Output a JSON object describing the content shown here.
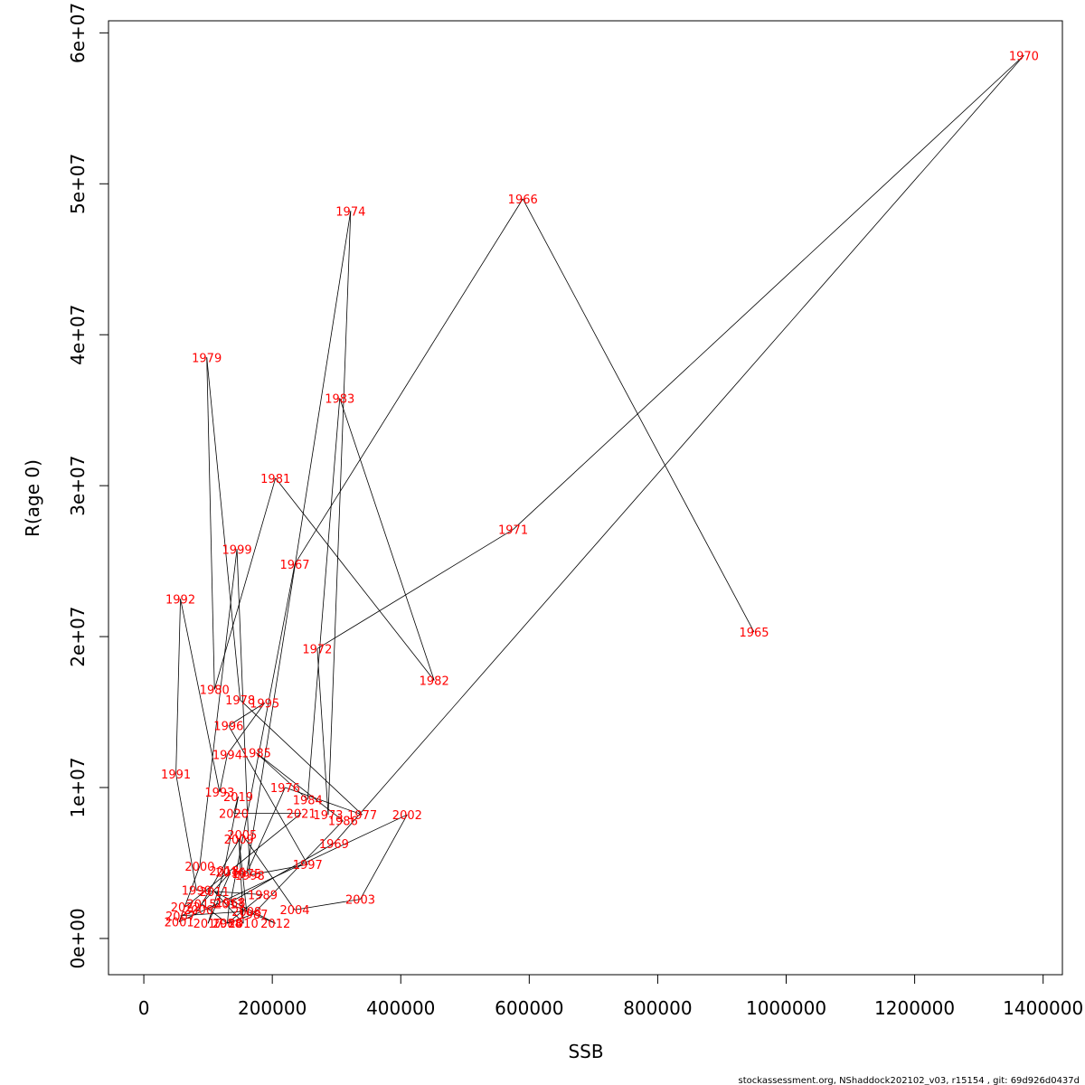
{
  "chart_data": {
    "type": "line",
    "xlabel": "SSB",
    "ylabel": "R(age 0)",
    "xlim": [
      -55000,
      1430000
    ],
    "ylim": [
      -2400000,
      60800000
    ],
    "xticks": [
      0,
      200000,
      400000,
      600000,
      800000,
      1000000,
      1200000,
      1400000
    ],
    "xtick_labels": [
      "0",
      "200000",
      "400000",
      "600000",
      "800000",
      "1000000",
      "1200000",
      "1400000"
    ],
    "yticks": [
      0,
      10000000,
      20000000,
      30000000,
      40000000,
      50000000,
      60000000
    ],
    "ytick_labels": [
      "0e+00",
      "1e+07",
      "2e+07",
      "3e+07",
      "4e+07",
      "5e+07",
      "6e+07"
    ],
    "grid": false,
    "line_color": "#000000",
    "label_color": "#ff0000",
    "points": [
      {
        "label": "1965",
        "x": 950000,
        "y": 20300000
      },
      {
        "label": "1966",
        "x": 590000,
        "y": 49000000
      },
      {
        "label": "1967",
        "x": 235000,
        "y": 24800000
      },
      {
        "label": "1968",
        "x": 135000,
        "y": 2400000
      },
      {
        "label": "1969",
        "x": 296000,
        "y": 6300000
      },
      {
        "label": "1970",
        "x": 1370000,
        "y": 58500000
      },
      {
        "label": "1971",
        "x": 575000,
        "y": 27100000
      },
      {
        "label": "1972",
        "x": 270000,
        "y": 19200000
      },
      {
        "label": "1973",
        "x": 287000,
        "y": 8200000
      },
      {
        "label": "1974",
        "x": 322000,
        "y": 48200000
      },
      {
        "label": "1975",
        "x": 160000,
        "y": 4300000
      },
      {
        "label": "1976",
        "x": 220000,
        "y": 10000000
      },
      {
        "label": "1977",
        "x": 340000,
        "y": 8200000
      },
      {
        "label": "1978",
        "x": 150000,
        "y": 15800000
      },
      {
        "label": "1979",
        "x": 98000,
        "y": 38500000
      },
      {
        "label": "1980",
        "x": 110000,
        "y": 16500000
      },
      {
        "label": "1981",
        "x": 205000,
        "y": 30500000
      },
      {
        "label": "1982",
        "x": 452000,
        "y": 17100000
      },
      {
        "label": "1983",
        "x": 305000,
        "y": 35800000
      },
      {
        "label": "1984",
        "x": 255000,
        "y": 9200000
      },
      {
        "label": "1985",
        "x": 175000,
        "y": 12300000
      },
      {
        "label": "1986",
        "x": 310000,
        "y": 7800000
      },
      {
        "label": "1987",
        "x": 170000,
        "y": 1600000
      },
      {
        "label": "1988",
        "x": 130000,
        "y": 1000000
      },
      {
        "label": "1989",
        "x": 185000,
        "y": 2900000
      },
      {
        "label": "1990",
        "x": 82000,
        "y": 3200000
      },
      {
        "label": "1991",
        "x": 50000,
        "y": 10900000
      },
      {
        "label": "1992",
        "x": 57000,
        "y": 22500000
      },
      {
        "label": "1993",
        "x": 118000,
        "y": 9700000
      },
      {
        "label": "1994",
        "x": 130000,
        "y": 12200000
      },
      {
        "label": "1995",
        "x": 188000,
        "y": 15600000
      },
      {
        "label": "1996",
        "x": 132000,
        "y": 14100000
      },
      {
        "label": "1997",
        "x": 255000,
        "y": 4900000
      },
      {
        "label": "1998",
        "x": 165000,
        "y": 4200000
      },
      {
        "label": "1999",
        "x": 145000,
        "y": 25800000
      },
      {
        "label": "2000",
        "x": 87000,
        "y": 4800000
      },
      {
        "label": "2001",
        "x": 55000,
        "y": 1100000
      },
      {
        "label": "2002",
        "x": 410000,
        "y": 8200000
      },
      {
        "label": "2003",
        "x": 337000,
        "y": 2600000
      },
      {
        "label": "2004",
        "x": 235000,
        "y": 1900000
      },
      {
        "label": "2005",
        "x": 153000,
        "y": 6900000
      },
      {
        "label": "2006",
        "x": 85000,
        "y": 1900000
      },
      {
        "label": "2007",
        "x": 57000,
        "y": 1500000
      },
      {
        "label": "2008",
        "x": 160000,
        "y": 1800000
      },
      {
        "label": "2009",
        "x": 148000,
        "y": 6600000
      },
      {
        "label": "2010",
        "x": 155000,
        "y": 1000000
      },
      {
        "label": "2011",
        "x": 110000,
        "y": 3100000
      },
      {
        "label": "2012",
        "x": 205000,
        "y": 1000000
      },
      {
        "label": "2013",
        "x": 133000,
        "y": 2300000
      },
      {
        "label": "2014",
        "x": 130000,
        "y": 1000000
      },
      {
        "label": "2015",
        "x": 90000,
        "y": 2300000
      },
      {
        "label": "2016",
        "x": 135000,
        "y": 4400000
      },
      {
        "label": "2017",
        "x": 100000,
        "y": 1000000
      },
      {
        "label": "2018",
        "x": 125000,
        "y": 4500000
      },
      {
        "label": "2019",
        "x": 147000,
        "y": 9400000
      },
      {
        "label": "2020",
        "x": 140000,
        "y": 8300000
      },
      {
        "label": "2021",
        "x": 245000,
        "y": 8300000
      },
      {
        "label": "2022",
        "x": 65000,
        "y": 2100000
      }
    ]
  },
  "footer": "stockassessment.org, NShaddock202102_v03, r15154 , git: 69d926d0437d"
}
